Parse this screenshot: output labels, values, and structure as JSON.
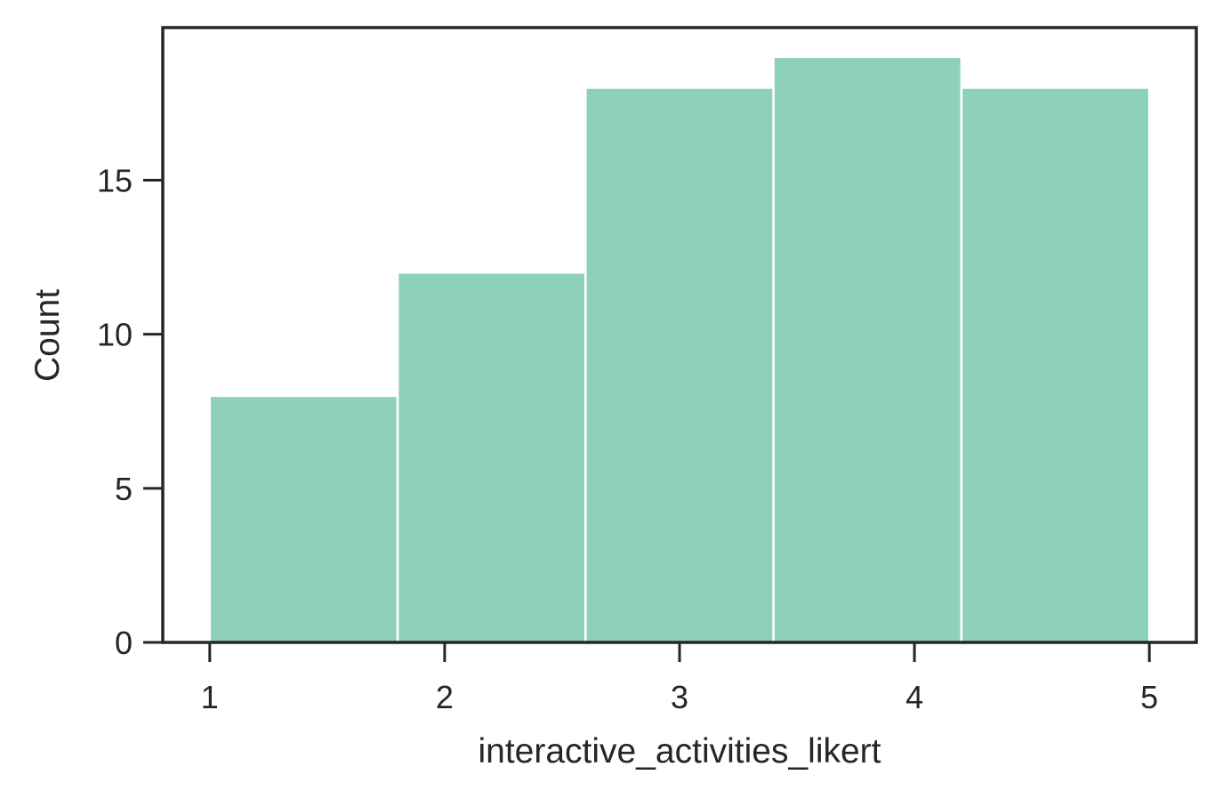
{
  "chart_data": {
    "type": "bar",
    "subtype": "histogram",
    "title": "",
    "xlabel": "interactive_activities_likert",
    "ylabel": "Count",
    "bins": [
      {
        "start": 1.0,
        "end": 1.8,
        "count": 8
      },
      {
        "start": 1.8,
        "end": 2.6,
        "count": 12
      },
      {
        "start": 2.6,
        "end": 3.4,
        "count": 18
      },
      {
        "start": 3.4,
        "end": 4.2,
        "count": 19
      },
      {
        "start": 4.2,
        "end": 5.0,
        "count": 18
      }
    ],
    "xlim": [
      0.8,
      5.2
    ],
    "ylim": [
      0,
      19.95
    ],
    "x_ticks": [
      "1",
      "2",
      "3",
      "4",
      "5"
    ],
    "y_ticks": [
      "0",
      "5",
      "10",
      "15"
    ],
    "grid": false,
    "legend": "none",
    "colors": {
      "bar_fill": "#8dd1bb",
      "bar_edge": "#ffffff",
      "axis": "#262626",
      "text": "#262626"
    }
  }
}
